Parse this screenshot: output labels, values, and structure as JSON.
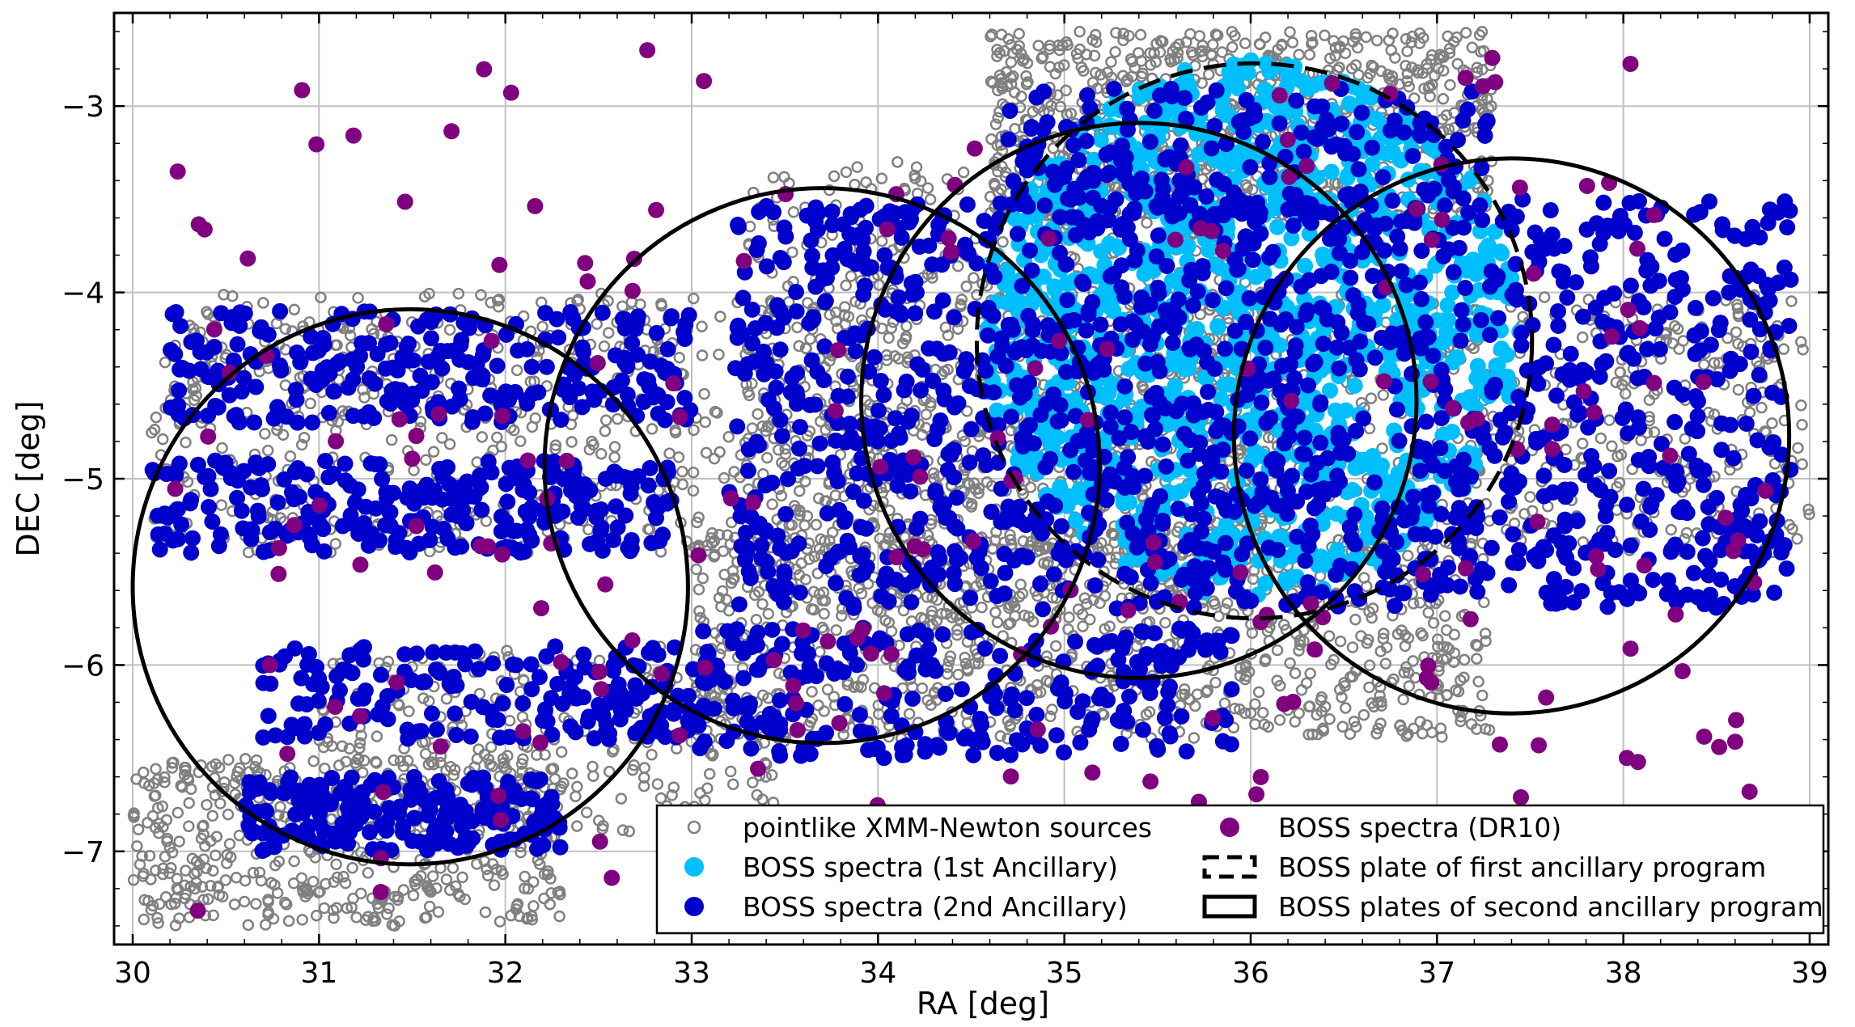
{
  "chart_data": {
    "type": "scatter",
    "title": "",
    "xlabel": "RA [deg]",
    "ylabel": "DEC [deg]",
    "xlim": [
      29.9,
      39.1
    ],
    "ylim": [
      -7.5,
      -2.5
    ],
    "x_ticks": [
      30,
      31,
      32,
      33,
      34,
      35,
      36,
      37,
      38,
      39
    ],
    "x_tick_labels": [
      "30",
      "31",
      "32",
      "33",
      "34",
      "35",
      "36",
      "37",
      "38",
      "39"
    ],
    "y_ticks": [
      -3,
      -4,
      -5,
      -6,
      -7
    ],
    "y_tick_labels": [
      "−3",
      "−4",
      "−5",
      "−6",
      "−7"
    ],
    "grid": true,
    "legend_position": "bottom-right",
    "series": [
      {
        "name": "pointlike XMM-Newton sources",
        "marker": "open-circle",
        "color": "#808080",
        "regions": [
          {
            "ra": [
              30.1,
              39.0
            ],
            "dec": [
              -5.4,
              -4.0
            ],
            "density": 1500
          },
          {
            "ra": [
              30.0,
              32.3
            ],
            "dec": [
              -7.4,
              -6.5
            ],
            "density": 500
          },
          {
            "ra": [
              31.0,
              33.5
            ],
            "dec": [
              -6.9,
              -5.9
            ],
            "density": 300
          },
          {
            "ra": [
              33.0,
              37.3
            ],
            "dec": [
              -6.4,
              -5.3
            ],
            "density": 900
          },
          {
            "ra": [
              33.3,
              36.0
            ],
            "dec": [
              -5.8,
              -3.3
            ],
            "density": 700
          },
          {
            "ra": [
              34.6,
              37.3
            ],
            "dec": [
              -3.6,
              -2.6
            ],
            "density": 800
          }
        ]
      },
      {
        "name": "BOSS spectra (1st Ancillary)",
        "marker": "filled-circle",
        "color": "#00bfff",
        "regions": [
          {
            "center": [
              36.0,
              -4.2
            ],
            "radius_deg": 1.45,
            "density": 1200
          }
        ]
      },
      {
        "name": "BOSS spectra (2nd Ancillary)",
        "marker": "filled-circle",
        "color": "#0000cd",
        "regions": [
          {
            "ra": [
              30.2,
              33.0
            ],
            "dec": [
              -4.7,
              -4.1
            ],
            "density": 260
          },
          {
            "ra": [
              30.1,
              32.9
            ],
            "dec": [
              -5.4,
              -4.9
            ],
            "density": 260
          },
          {
            "ra": [
              30.7,
              33.0
            ],
            "dec": [
              -6.4,
              -5.9
            ],
            "density": 180
          },
          {
            "ra": [
              30.6,
              32.3
            ],
            "dec": [
              -7.0,
              -6.6
            ],
            "density": 200
          },
          {
            "ra": [
              33.0,
              35.9
            ],
            "dec": [
              -6.5,
              -5.8
            ],
            "density": 250
          },
          {
            "ra": [
              33.2,
              38.9
            ],
            "dec": [
              -5.7,
              -3.5
            ],
            "density": 1400
          },
          {
            "ra": [
              34.7,
              37.3
            ],
            "dec": [
              -3.6,
              -2.9
            ],
            "density": 200
          }
        ]
      },
      {
        "name": "BOSS spectra (DR10)",
        "marker": "filled-circle",
        "color": "#800080",
        "regions": [
          {
            "ra": [
              30.2,
              38.8
            ],
            "dec": [
              -7.4,
              -2.7
            ],
            "density": 240
          }
        ]
      }
    ],
    "plates": [
      {
        "label": "BOSS plate of first ancillary program",
        "style": "dashed",
        "center": [
          36.02,
          -4.26
        ],
        "radius_deg": 1.49
      },
      {
        "label": "BOSS plates of second ancillary program",
        "style": "solid",
        "center": [
          31.49,
          -5.58
        ],
        "radius_deg": 1.49
      },
      {
        "label": "BOSS plates of second ancillary program",
        "style": "solid",
        "center": [
          33.7,
          -4.93
        ],
        "radius_deg": 1.49
      },
      {
        "label": "BOSS plates of second ancillary program",
        "style": "solid",
        "center": [
          35.4,
          -4.58
        ],
        "radius_deg": 1.49
      },
      {
        "label": "BOSS plates of second ancillary program",
        "style": "solid",
        "center": [
          37.4,
          -4.77
        ],
        "radius_deg": 1.49
      }
    ],
    "legend": [
      {
        "label": "pointlike XMM-Newton sources",
        "swatch": "open-circle",
        "color": "#808080"
      },
      {
        "label": "BOSS spectra (1st Ancillary)",
        "swatch": "filled-circle",
        "color": "#00bfff"
      },
      {
        "label": "BOSS spectra (2nd Ancillary)",
        "swatch": "filled-circle",
        "color": "#0000cd"
      },
      {
        "label": "BOSS spectra (DR10)",
        "swatch": "filled-circle",
        "color": "#800080"
      },
      {
        "label": "BOSS plate of first ancillary program",
        "swatch": "dashed-box",
        "color": "#000000"
      },
      {
        "label": "BOSS plates of second ancillary program",
        "swatch": "solid-box",
        "color": "#000000"
      }
    ]
  }
}
